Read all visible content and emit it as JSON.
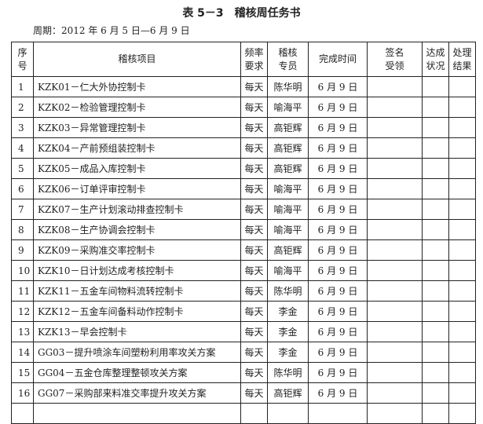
{
  "title": "表 5－3　稽核周任务书",
  "period": "周期：2012 年 6 月 5 日—6 月 9 日",
  "headers": [
    "序\n号",
    "稽核项目",
    "频率\n要求",
    "稽核\n专员",
    "完成时间",
    "签名\n受领",
    "达成\n状况",
    "处理\n结果"
  ],
  "rows": [
    [
      "1",
      "KZK01－仁大外协控制卡",
      "每天",
      "陈华明",
      "6 月 9 日"
    ],
    [
      "2",
      "KZK02－检验管理控制卡",
      "每天",
      "喻海平",
      "6 月 9 日"
    ],
    [
      "3",
      "KZK03－异常管理控制卡",
      "每天",
      "高钜辉",
      "6 月 9 日"
    ],
    [
      "4",
      "KZK04－产前预组装控制卡",
      "每天",
      "高钜辉",
      "6 月 9 日"
    ],
    [
      "5",
      "KZK05－成品入库控制卡",
      "每天",
      "高钜辉",
      "6 月 9 日"
    ],
    [
      "6",
      "KZK06－订单评审控制卡",
      "每天",
      "喻海平",
      "6 月 9 日"
    ],
    [
      "7",
      "KZK07－生产计划滚动排查控制卡",
      "每天",
      "喻海平",
      "6 月 9 日"
    ],
    [
      "8",
      "KZK08－生产协调会控制卡",
      "每天",
      "喻海平",
      "6 月 9 日"
    ],
    [
      "9",
      "KZK09－采购准交率控制卡",
      "每天",
      "高钜辉",
      "6 月 9 日"
    ],
    [
      "10",
      "KZK10－日计划达成考核控制卡",
      "每天",
      "喻海平",
      "6 月 9 日"
    ],
    [
      "11",
      "KZK11－五金车间物料流转控制卡",
      "每天",
      "陈华明",
      "6 月 9 日"
    ],
    [
      "12",
      "KZK12－五金车间备料动作控制卡",
      "每天",
      "李金",
      "6 月 9 日"
    ],
    [
      "13",
      "KZK13－早会控制卡",
      "每天",
      "李金",
      "6 月 9 日"
    ],
    [
      "14",
      "GG03－提升喷涂车间塑粉利用率攻关方案",
      "每天",
      "李金",
      "6 月 9 日"
    ],
    [
      "15",
      "GG04－五金仓库整理整顿攻关方案",
      "每天",
      "陈华明",
      "6 月 9 日"
    ],
    [
      "16",
      "GG07－采购部来料准交率提升攻关方案",
      "每天",
      "高钜辉",
      "6 月 9 日"
    ]
  ]
}
